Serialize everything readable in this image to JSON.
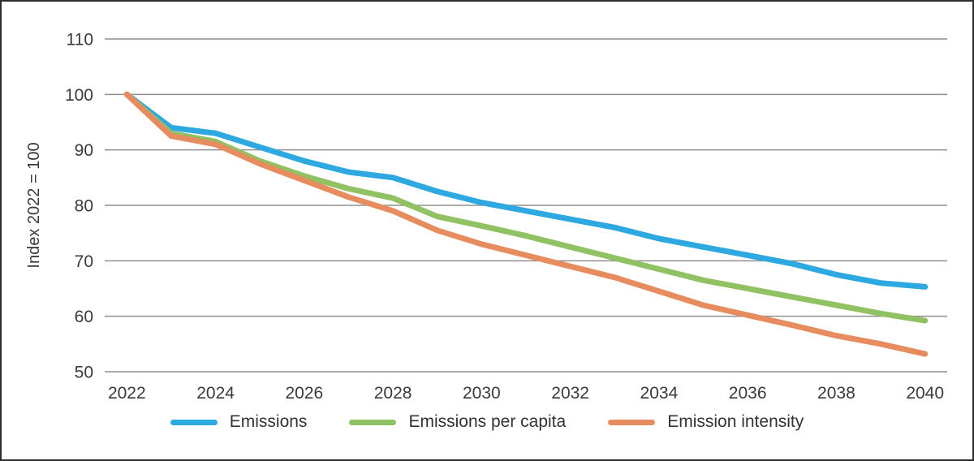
{
  "figure": {
    "background": "#ffffff",
    "border_color": "#2d2d2d"
  },
  "chart_data": {
    "type": "line",
    "title": "",
    "xlabel": "",
    "ylabel": "Index 2022 = 100",
    "x": [
      2022,
      2023,
      2024,
      2025,
      2026,
      2027,
      2028,
      2029,
      2030,
      2031,
      2032,
      2033,
      2034,
      2035,
      2036,
      2037,
      2038,
      2039,
      2040
    ],
    "x_tick_labels": [
      "2022",
      "2024",
      "2026",
      "2028",
      "2030",
      "2032",
      "2034",
      "2036",
      "2038",
      "2040"
    ],
    "y_ticks": [
      50,
      60,
      70,
      80,
      90,
      100,
      110
    ],
    "ylim": [
      50,
      110
    ],
    "grid": "horizontal",
    "gridline_color": "#8f8f8f",
    "tick_color": "#3a3a3a",
    "legend_position": "bottom",
    "series": [
      {
        "name": "Emissions",
        "color": "#2DA8E0",
        "values": [
          100,
          94,
          93,
          90.5,
          88,
          86,
          85,
          82.5,
          80.5,
          79,
          77.5,
          76,
          74,
          72.5,
          71,
          69.5,
          67.5,
          66,
          65.3
        ]
      },
      {
        "name": "Emissions per capita",
        "color": "#90C162",
        "values": [
          100,
          93,
          91.5,
          88,
          85.3,
          83,
          81.3,
          78,
          76.3,
          74.5,
          72.5,
          70.5,
          68.5,
          66.5,
          65,
          63.5,
          62,
          60.5,
          59.2
        ]
      },
      {
        "name": "Emission intensity",
        "color": "#E68C5F",
        "values": [
          100,
          92.5,
          91,
          87.5,
          84.5,
          81.5,
          79,
          75.5,
          73,
          71,
          69,
          67,
          64.5,
          62,
          60.2,
          58.4,
          56.5,
          55,
          53.2
        ]
      }
    ]
  }
}
